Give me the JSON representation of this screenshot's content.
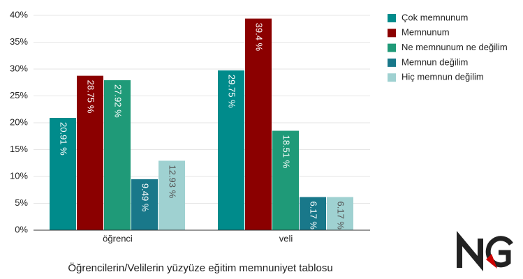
{
  "chart_data": {
    "type": "bar",
    "title": "Öğrencilerin/Velilerin yüzyüze eğitim memnuniyet tablosu",
    "categories": [
      "öğrenci",
      "veli"
    ],
    "series": [
      {
        "name": "Çok memnunum",
        "color": "#008b8b",
        "values": [
          20.91,
          29.75
        ],
        "value_labels": [
          "20.91 %",
          "29.75 %"
        ]
      },
      {
        "name": "Memnunum",
        "color": "#8b0000",
        "values": [
          28.75,
          39.4
        ],
        "value_labels": [
          "28.75 %",
          "39.4 %"
        ]
      },
      {
        "name": "Ne memnunum ne değilim",
        "color": "#1f9a78",
        "values": [
          27.92,
          18.51
        ],
        "value_labels": [
          "27.92 %",
          "18.51 %"
        ]
      },
      {
        "name": "Memnun değilim",
        "color": "#19788a",
        "values": [
          9.49,
          6.17
        ],
        "value_labels": [
          "9.49 %",
          "6.17 %"
        ]
      },
      {
        "name": "Hiç memnun değilim",
        "color": "#9fd1d1",
        "values": [
          12.93,
          6.17
        ],
        "value_labels": [
          "12.93 %",
          "6.17 %"
        ]
      }
    ],
    "ylim": [
      0,
      40
    ],
    "yticks": [
      {
        "value": 0,
        "label": "0%"
      },
      {
        "value": 5,
        "label": "5%"
      },
      {
        "value": 10,
        "label": "10%"
      },
      {
        "value": 15,
        "label": "15%"
      },
      {
        "value": 20,
        "label": "20%"
      },
      {
        "value": 25,
        "label": "25%"
      },
      {
        "value": 30,
        "label": "30%"
      },
      {
        "value": 35,
        "label": "35%"
      },
      {
        "value": 40,
        "label": "40%"
      }
    ],
    "grid": true,
    "legend": "right"
  }
}
